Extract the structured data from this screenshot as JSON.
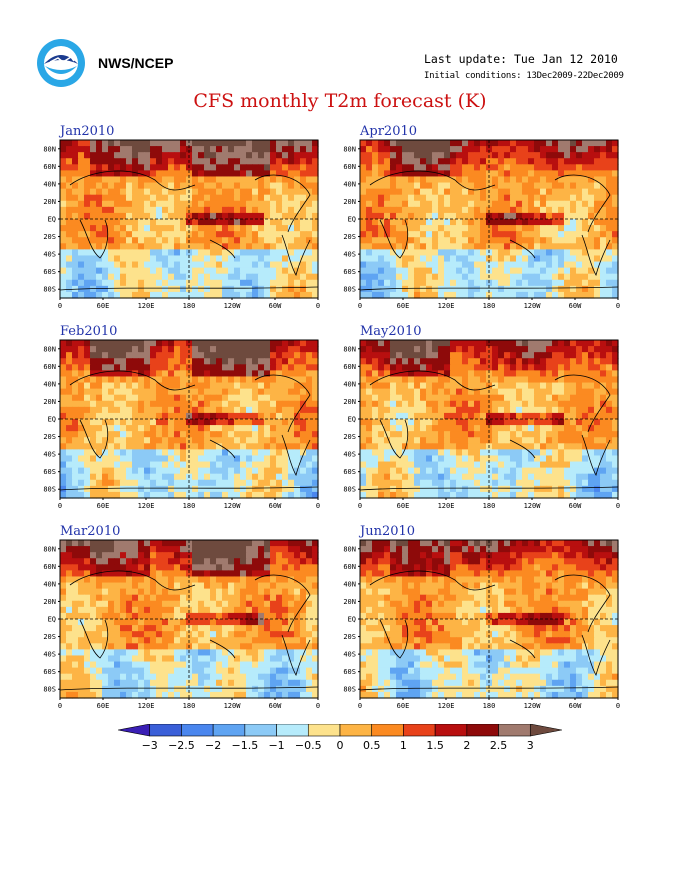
{
  "header": {
    "org": "NWS/NCEP",
    "last_update": "Last update: Tue Jan 12 2010",
    "initial_conditions": "Initial conditions: 13Dec2009-22Dec2009",
    "title": "CFS monthly T2m forecast (K)"
  },
  "logo": {
    "icon": "noaa-logo-icon"
  },
  "axes": {
    "lat_labels": [
      "80N",
      "60N",
      "40N",
      "20N",
      "EQ",
      "20S",
      "40S",
      "60S",
      "80S"
    ],
    "lon_labels": [
      "0",
      "60E",
      "120E",
      "180",
      "120W",
      "60W",
      "0"
    ]
  },
  "panels": [
    {
      "month": "Jan2010",
      "col": 0,
      "row": 0
    },
    {
      "month": "Apr2010",
      "col": 1,
      "row": 0
    },
    {
      "month": "Feb2010",
      "col": 0,
      "row": 1
    },
    {
      "month": "May2010",
      "col": 1,
      "row": 1
    },
    {
      "month": "Mar2010",
      "col": 0,
      "row": 2
    },
    {
      "month": "Jun2010",
      "col": 1,
      "row": 2
    }
  ],
  "colorbar": {
    "labels": [
      "-3",
      "-2.5",
      "-2",
      "-1.5",
      "-1",
      "-0.5",
      "0",
      "0.5",
      "1",
      "1.5",
      "2",
      "2.5",
      "3"
    ],
    "colors": [
      "#3a1fb5",
      "#3a5fd8",
      "#4a86ee",
      "#5fa4f2",
      "#8ccaf6",
      "#b6ebfb",
      "#fde28c",
      "#fdb445",
      "#fb8a21",
      "#e8421a",
      "#b80f0f",
      "#8e0a0a",
      "#a07a6e",
      "#6e4a3e"
    ]
  },
  "colors": {
    "title": "#cc1111",
    "panel_title": "#2233aa",
    "grid": "#000000"
  }
}
